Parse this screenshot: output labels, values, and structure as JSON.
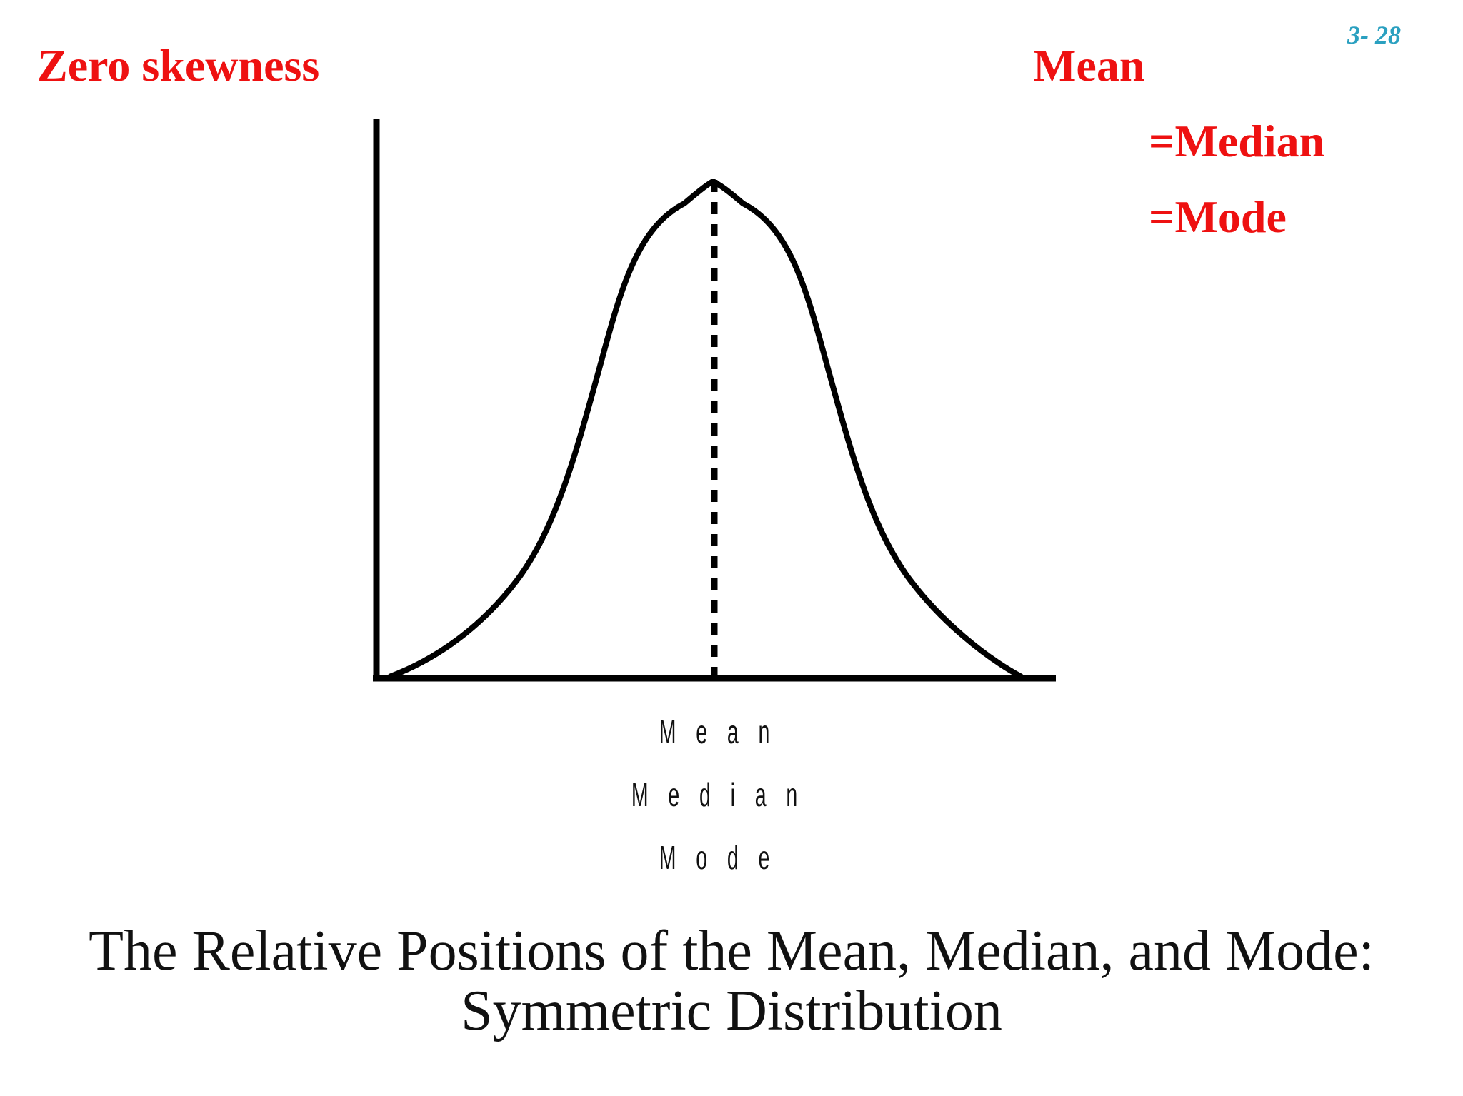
{
  "slide": {
    "page_number": "3- 28",
    "heading_left": "Zero skewness",
    "equation": {
      "mean": "Mean",
      "median": "=Median",
      "mode": "=Mode"
    }
  },
  "diagram": {
    "curve_labels": [
      "M e a n",
      "M e d i a n",
      "M o d e"
    ]
  },
  "caption": {
    "line1": "The Relative Positions of the Mean, Median, and Mode:",
    "line2": "Symmetric Distribution"
  },
  "colors": {
    "heading": "#ee1111",
    "page_number": "#2aa0c0",
    "ink": "#111111"
  }
}
